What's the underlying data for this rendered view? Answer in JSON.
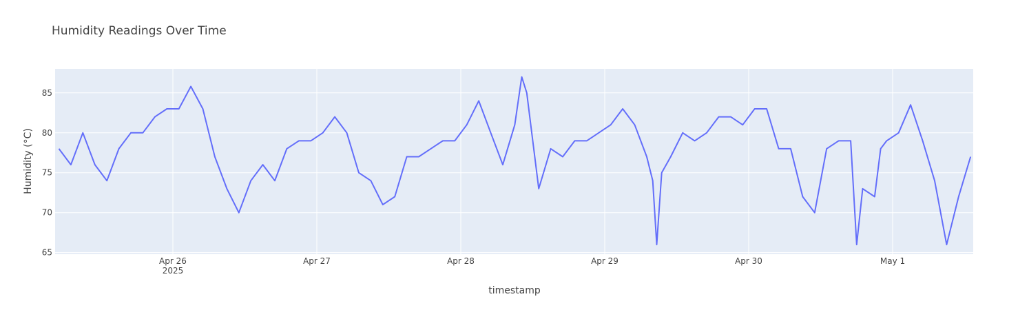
{
  "chart_data": {
    "type": "line",
    "title": "Humidity Readings Over Time",
    "x_label": "timestamp",
    "y_label": "Humidity (°C)",
    "x": [
      "2025-04-25T05:00",
      "2025-04-25T07:00",
      "2025-04-25T09:00",
      "2025-04-25T11:00",
      "2025-04-25T13:00",
      "2025-04-25T15:00",
      "2025-04-25T17:00",
      "2025-04-25T19:00",
      "2025-04-25T21:00",
      "2025-04-25T23:00",
      "2025-04-26T01:00",
      "2025-04-26T03:00",
      "2025-04-26T05:00",
      "2025-04-26T07:00",
      "2025-04-26T09:00",
      "2025-04-26T11:00",
      "2025-04-26T13:00",
      "2025-04-26T15:00",
      "2025-04-26T17:00",
      "2025-04-26T19:00",
      "2025-04-26T21:00",
      "2025-04-26T23:00",
      "2025-04-27T01:00",
      "2025-04-27T03:00",
      "2025-04-27T05:00",
      "2025-04-27T07:00",
      "2025-04-27T09:00",
      "2025-04-27T11:00",
      "2025-04-27T13:00",
      "2025-04-27T15:00",
      "2025-04-27T17:00",
      "2025-04-27T19:00",
      "2025-04-27T21:00",
      "2025-04-27T23:00",
      "2025-04-28T01:00",
      "2025-04-28T03:00",
      "2025-04-28T05:00",
      "2025-04-28T07:00",
      "2025-04-28T09:00",
      "2025-04-28T10:10",
      "2025-04-28T11:00",
      "2025-04-28T12:00",
      "2025-04-28T13:00",
      "2025-04-28T15:00",
      "2025-04-28T17:00",
      "2025-04-28T19:00",
      "2025-04-28T21:00",
      "2025-04-28T23:00",
      "2025-04-29T01:00",
      "2025-04-29T03:00",
      "2025-04-29T05:00",
      "2025-04-29T07:00",
      "2025-04-29T08:00",
      "2025-04-29T08:40",
      "2025-04-29T09:30",
      "2025-04-29T11:00",
      "2025-04-29T13:00",
      "2025-04-29T15:00",
      "2025-04-29T17:00",
      "2025-04-29T19:00",
      "2025-04-29T21:00",
      "2025-04-29T23:00",
      "2025-04-30T01:00",
      "2025-04-30T03:00",
      "2025-04-30T05:00",
      "2025-04-30T07:00",
      "2025-04-30T09:00",
      "2025-04-30T11:00",
      "2025-04-30T13:00",
      "2025-04-30T15:00",
      "2025-04-30T17:00",
      "2025-04-30T18:00",
      "2025-04-30T19:00",
      "2025-04-30T21:00",
      "2025-04-30T22:00",
      "2025-04-30T23:00",
      "2025-05-01T01:00",
      "2025-05-01T03:00",
      "2025-05-01T05:00",
      "2025-05-01T07:00",
      "2025-05-01T09:00",
      "2025-05-01T11:00",
      "2025-05-01T13:00"
    ],
    "series": [
      {
        "name": "humidity",
        "color": "#636efa",
        "values": [
          78,
          76,
          80,
          76,
          74,
          78,
          80,
          80,
          82,
          83,
          83,
          85.8,
          83,
          77,
          73,
          70,
          74,
          76,
          74,
          78,
          79,
          79,
          80,
          82,
          80,
          75,
          74,
          71,
          72,
          77,
          77,
          78,
          79,
          79,
          81,
          84,
          80,
          76,
          81,
          87,
          85,
          79,
          73,
          78,
          77,
          79,
          79,
          80,
          81,
          83,
          81,
          77,
          74,
          66,
          75,
          77,
          80,
          79,
          80,
          82,
          82,
          81,
          83,
          83,
          78,
          78,
          72,
          70,
          78,
          79,
          79,
          66,
          73,
          72,
          78,
          79,
          80,
          83.5,
          79,
          74,
          66,
          72,
          77
        ]
      }
    ],
    "xlim": [
      "2025-04-25T04:22",
      "2025-05-01T13:26"
    ],
    "xticks": [
      {
        "value": "2025-04-26T00:00",
        "label": "Apr 26\n2025"
      },
      {
        "value": "2025-04-27T00:00",
        "label": "Apr 27"
      },
      {
        "value": "2025-04-28T00:00",
        "label": "Apr 28"
      },
      {
        "value": "2025-04-29T00:00",
        "label": "Apr 29"
      },
      {
        "value": "2025-04-30T00:00",
        "label": "Apr 30"
      },
      {
        "value": "2025-05-01T00:00",
        "label": "May 1"
      }
    ],
    "ylim": [
      64.8,
      88
    ],
    "yticks": [
      65,
      70,
      75,
      80,
      85
    ],
    "grid": true
  }
}
